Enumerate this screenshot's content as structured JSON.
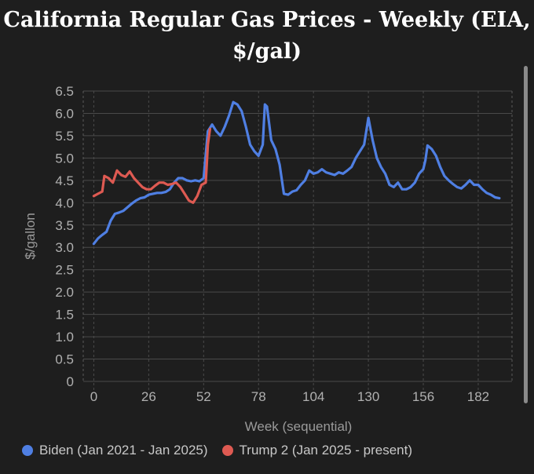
{
  "chart_data": {
    "type": "line",
    "title_lines": [
      "California Regular Gas Prices - Weekly (EIA,",
      "$/gal)"
    ],
    "xlabel": "Week (sequential)",
    "ylabel": "$/gallon",
    "xlim": [
      -5,
      198
    ],
    "ylim": [
      0,
      6.5
    ],
    "xticks": [
      0,
      26,
      52,
      78,
      104,
      130,
      156,
      182
    ],
    "yticks": [
      0,
      0.5,
      1.0,
      1.5,
      2.0,
      2.5,
      3.0,
      3.5,
      4.0,
      4.5,
      5.0,
      5.5,
      6.0,
      6.5
    ],
    "grid": true,
    "legend_position": "bottom-left",
    "series": [
      {
        "name": "Biden (Jan 2021 - Jan 2025)",
        "color": "#4f7fe3",
        "points": [
          [
            0,
            3.08
          ],
          [
            2,
            3.2
          ],
          [
            4,
            3.28
          ],
          [
            6,
            3.35
          ],
          [
            8,
            3.6
          ],
          [
            10,
            3.75
          ],
          [
            12,
            3.78
          ],
          [
            14,
            3.82
          ],
          [
            16,
            3.9
          ],
          [
            18,
            3.98
          ],
          [
            20,
            4.05
          ],
          [
            22,
            4.1
          ],
          [
            24,
            4.12
          ],
          [
            26,
            4.18
          ],
          [
            28,
            4.2
          ],
          [
            30,
            4.22
          ],
          [
            32,
            4.22
          ],
          [
            34,
            4.24
          ],
          [
            36,
            4.3
          ],
          [
            38,
            4.45
          ],
          [
            40,
            4.55
          ],
          [
            42,
            4.55
          ],
          [
            44,
            4.5
          ],
          [
            46,
            4.48
          ],
          [
            48,
            4.5
          ],
          [
            50,
            4.48
          ],
          [
            52,
            4.55
          ],
          [
            54,
            5.6
          ],
          [
            56,
            5.75
          ],
          [
            58,
            5.6
          ],
          [
            60,
            5.5
          ],
          [
            62,
            5.7
          ],
          [
            64,
            5.95
          ],
          [
            66,
            6.25
          ],
          [
            68,
            6.2
          ],
          [
            70,
            6.05
          ],
          [
            72,
            5.7
          ],
          [
            74,
            5.3
          ],
          [
            76,
            5.15
          ],
          [
            78,
            5.05
          ],
          [
            80,
            5.3
          ],
          [
            81,
            6.2
          ],
          [
            82,
            6.15
          ],
          [
            84,
            5.4
          ],
          [
            86,
            5.2
          ],
          [
            88,
            4.85
          ],
          [
            90,
            4.2
          ],
          [
            92,
            4.18
          ],
          [
            94,
            4.25
          ],
          [
            96,
            4.28
          ],
          [
            98,
            4.4
          ],
          [
            100,
            4.5
          ],
          [
            102,
            4.72
          ],
          [
            104,
            4.65
          ],
          [
            106,
            4.68
          ],
          [
            108,
            4.75
          ],
          [
            110,
            4.68
          ],
          [
            112,
            4.65
          ],
          [
            114,
            4.62
          ],
          [
            116,
            4.68
          ],
          [
            118,
            4.65
          ],
          [
            120,
            4.72
          ],
          [
            122,
            4.8
          ],
          [
            124,
            5.0
          ],
          [
            126,
            5.15
          ],
          [
            128,
            5.3
          ],
          [
            129,
            5.6
          ],
          [
            130,
            5.9
          ],
          [
            132,
            5.4
          ],
          [
            134,
            5.0
          ],
          [
            136,
            4.8
          ],
          [
            138,
            4.65
          ],
          [
            140,
            4.4
          ],
          [
            142,
            4.35
          ],
          [
            144,
            4.45
          ],
          [
            146,
            4.3
          ],
          [
            148,
            4.3
          ],
          [
            150,
            4.35
          ],
          [
            152,
            4.45
          ],
          [
            154,
            4.65
          ],
          [
            156,
            4.75
          ],
          [
            157,
            4.95
          ],
          [
            158,
            5.28
          ],
          [
            160,
            5.2
          ],
          [
            162,
            5.05
          ],
          [
            164,
            4.8
          ],
          [
            166,
            4.6
          ],
          [
            168,
            4.5
          ],
          [
            170,
            4.42
          ],
          [
            172,
            4.35
          ],
          [
            174,
            4.32
          ],
          [
            176,
            4.4
          ],
          [
            178,
            4.5
          ],
          [
            180,
            4.4
          ],
          [
            182,
            4.4
          ],
          [
            184,
            4.3
          ],
          [
            186,
            4.22
          ],
          [
            188,
            4.18
          ],
          [
            190,
            4.12
          ],
          [
            192,
            4.1
          ]
        ]
      },
      {
        "name": "Trump 2 (Jan 2025 - present)",
        "color": "#de5a52",
        "points": [
          [
            0,
            4.15
          ],
          [
            2,
            4.2
          ],
          [
            4,
            4.25
          ],
          [
            5,
            4.6
          ],
          [
            7,
            4.55
          ],
          [
            9,
            4.45
          ],
          [
            11,
            4.72
          ],
          [
            13,
            4.62
          ],
          [
            15,
            4.58
          ],
          [
            17,
            4.7
          ],
          [
            19,
            4.55
          ],
          [
            21,
            4.45
          ],
          [
            23,
            4.35
          ],
          [
            25,
            4.3
          ],
          [
            27,
            4.3
          ],
          [
            29,
            4.38
          ],
          [
            31,
            4.45
          ],
          [
            33,
            4.45
          ],
          [
            35,
            4.4
          ],
          [
            37,
            4.42
          ],
          [
            39,
            4.45
          ],
          [
            41,
            4.35
          ],
          [
            43,
            4.2
          ],
          [
            45,
            4.05
          ],
          [
            47,
            4.0
          ],
          [
            49,
            4.15
          ],
          [
            51,
            4.4
          ],
          [
            53,
            4.45
          ],
          [
            54,
            5.3
          ],
          [
            55,
            5.65
          ]
        ]
      }
    ]
  }
}
